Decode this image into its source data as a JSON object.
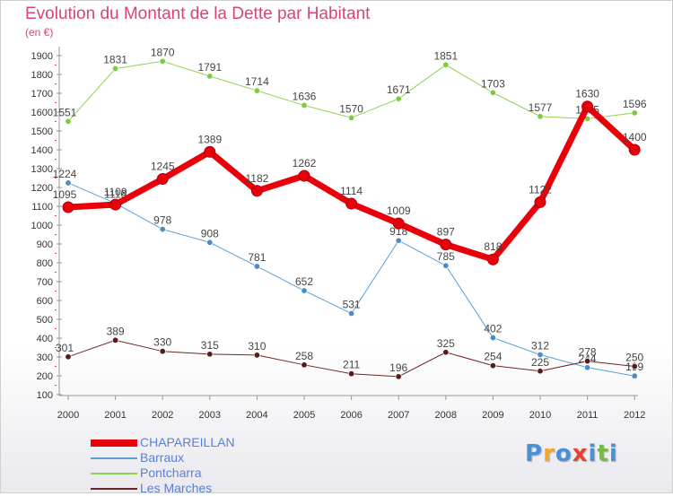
{
  "header": {
    "title": "Evolution du Montant de la Dette par Habitant",
    "unit": "(en €)"
  },
  "logo": {
    "letters": [
      "P",
      "r",
      "o",
      "x",
      "i",
      "t",
      "i"
    ],
    "colors": [
      "#4a90d9",
      "#f5a623",
      "#4a90d9",
      "#e8412f",
      "#4a90d9",
      "#7ab648",
      "#4a90d9"
    ]
  },
  "chart_data": {
    "type": "line",
    "x": [
      2000,
      2001,
      2002,
      2003,
      2004,
      2005,
      2006,
      2007,
      2008,
      2009,
      2010,
      2011,
      2012
    ],
    "ylim": [
      100,
      1950
    ],
    "yticks": [
      100,
      200,
      300,
      400,
      500,
      600,
      700,
      800,
      900,
      1000,
      1100,
      1200,
      1300,
      1400,
      1500,
      1600,
      1700,
      1800,
      1900
    ],
    "grid": false,
    "legend_position": "bottom-left",
    "series": [
      {
        "name": "Pontcharra",
        "color": "#8cd34f",
        "width": 1,
        "marker": "#7ccd3a",
        "values": [
          1551,
          1831,
          1870,
          1791,
          1714,
          1636,
          1570,
          1671,
          1851,
          1703,
          1577,
          1565,
          1596
        ]
      },
      {
        "name": "Barraux",
        "color": "#5a9fd4",
        "width": 1,
        "marker": "#4a8cc8",
        "values": [
          1224,
          1116,
          978,
          908,
          781,
          652,
          531,
          918,
          785,
          402,
          312,
          244,
          199
        ]
      },
      {
        "name": "Les Marches",
        "color": "#6e2424",
        "width": 1,
        "marker": "#5a1a1a",
        "values": [
          301,
          389,
          330,
          315,
          310,
          258,
          211,
          196,
          325,
          254,
          225,
          278,
          250
        ]
      },
      {
        "name": "CHAPAREILLAN",
        "color": "#e8000b",
        "width": 7,
        "marker": "#e8000b",
        "values": [
          1095,
          1109,
          1245,
          1389,
          1182,
          1262,
          1114,
          1009,
          897,
          818,
          1122,
          1630,
          1400
        ]
      }
    ],
    "legend_order": [
      "CHAPAREILLAN",
      "Barraux",
      "Pontcharra",
      "Les Marches"
    ],
    "legend_text_color": "#5a7fd6"
  }
}
